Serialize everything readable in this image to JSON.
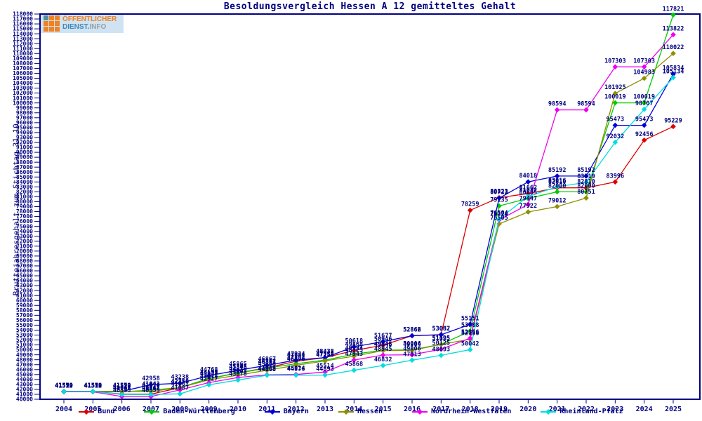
{
  "logo": {
    "line1": "ÖFFENTLICHER",
    "line2_part1": "DIENST.",
    "line2_part2": "INFO"
  },
  "title": "Besoldungsvergleich Hessen A 12 gemitteltes Gehalt",
  "ylabel": "Bruttojahresgehalt zum Stichtag 31.10.",
  "chart_data": {
    "type": "line",
    "title": "Besoldungsvergleich Hessen A 12 gemitteltes Gehalt",
    "xlabel": "",
    "ylabel": "Bruttojahresgehalt zum Stichtag 31.10.",
    "x": [
      2004,
      2005,
      2006,
      2007,
      2008,
      2009,
      2010,
      2011,
      2012,
      2013,
      2014,
      2015,
      2016,
      2017,
      2018,
      2019,
      2020,
      2021,
      2022,
      2023,
      2024,
      2025
    ],
    "ylim": [
      40000,
      118000
    ],
    "ytick_step": 1000,
    "grid": false,
    "legend_position": "bottom",
    "axis_color": "#000080",
    "point_label_color": "#000080",
    "series": [
      {
        "name": "Bund",
        "color": "#dd0000",
        "values": [
          41570,
          41570,
          41042,
          41042,
          42350,
          44198,
          45345,
          46367,
          47684,
          48432,
          49868,
          50946,
          52866,
          53087,
          78259,
          80823,
          81662,
          82810,
          82810,
          83996,
          92456,
          95229
        ]
      },
      {
        "name": "Baden-Württemberg",
        "color": "#00cc00",
        "values": [
          41512,
          41512,
          41512,
          41842,
          42358,
          44191,
          45305,
          46312,
          47184,
          47934,
          49124,
          49945,
          50006,
          51125,
          53788,
          79135,
          80665,
          82000,
          82000,
          100019,
          100019,
          117821
        ]
      },
      {
        "name": "Bayern",
        "color": "#0000dd",
        "values": [
          41590,
          41590,
          41590,
          42958,
          43238,
          44768,
          45865,
          46867,
          47934,
          48438,
          50618,
          51677,
          52862,
          53062,
          55151,
          80723,
          84018,
          85192,
          85192,
          95473,
          95473,
          105834
        ]
      },
      {
        "name": "Hessen",
        "color": "#8f8f00",
        "values": [
          41570,
          41570,
          41570,
          41570,
          42350,
          43927,
          44878,
          45863,
          46876,
          47758,
          48725,
          49846,
          49904,
          51095,
          52156,
          75505,
          77922,
          79012,
          80751,
          101925,
          104983,
          110022
        ]
      },
      {
        "name": "Nordrhein-Westfalen",
        "color": "#ee00ee",
        "values": [
          41510,
          41510,
          40553,
          40553,
          41887,
          43375,
          44403,
          44938,
          45014,
          45514,
          47943,
          48945,
          49006,
          50125,
          52356,
          76324,
          79447,
          98594,
          98594,
          107303,
          107303,
          113822
        ]
      },
      {
        "name": "Rheinland-Pfalz",
        "color": "#00dddd",
        "values": [
          41570,
          41570,
          40963,
          40963,
          41087,
          42927,
          43878,
          44863,
          44876,
          44893,
          45868,
          46832,
          47913,
          48893,
          50042,
          76504,
          81082,
          83016,
          83919,
          92032,
          98707,
          105134
        ]
      }
    ]
  }
}
